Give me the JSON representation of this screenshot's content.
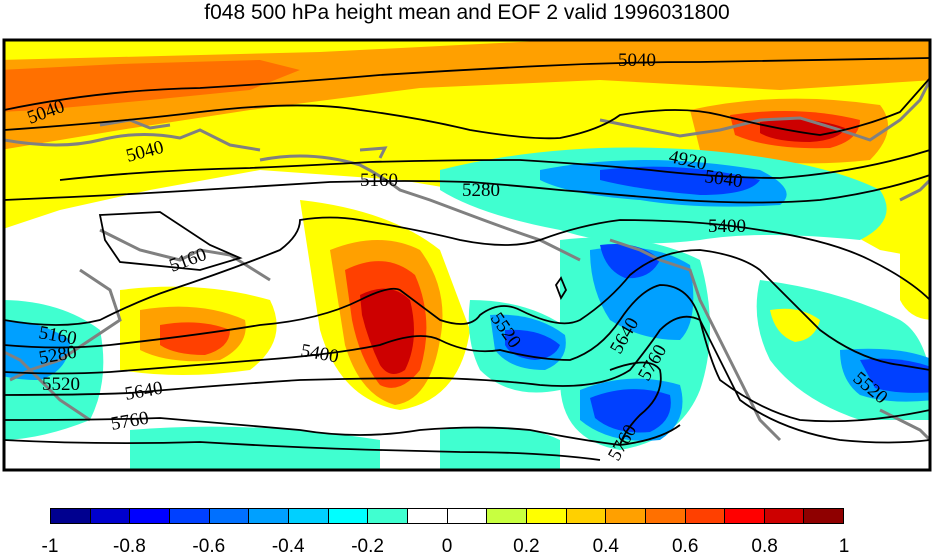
{
  "title": "f048 500 hPa height mean and EOF 2 valid 1996031800",
  "colorbar": {
    "colors": [
      "#00008f",
      "#0000cd",
      "#0000ff",
      "#0040ff",
      "#0070ff",
      "#00a0ff",
      "#00d0ff",
      "#00ffff",
      "#40ffd0",
      "#ffffff",
      "#ffffff",
      "#c8ff40",
      "#ffff00",
      "#ffd000",
      "#ffa000",
      "#ff7000",
      "#ff4000",
      "#ff0000",
      "#cd0000",
      "#8f0000"
    ],
    "tick_labels": [
      "-1",
      "-0.8",
      "-0.6",
      "-0.4",
      "-0.2",
      "0",
      "0.2",
      "0.4",
      "0.6",
      "0.8",
      "1"
    ]
  },
  "contour_labels": [
    "5040",
    "5040",
    "5040",
    "4920",
    "5040",
    "5160",
    "5280",
    "5400",
    "5160",
    "5160",
    "5280",
    "5520",
    "5400",
    "5520",
    "5640",
    "5760",
    "5640",
    "5760",
    "5520",
    "5760"
  ],
  "colors": {
    "land_outline": "#808080",
    "contour_line": "#000000",
    "frame": "#000000"
  }
}
